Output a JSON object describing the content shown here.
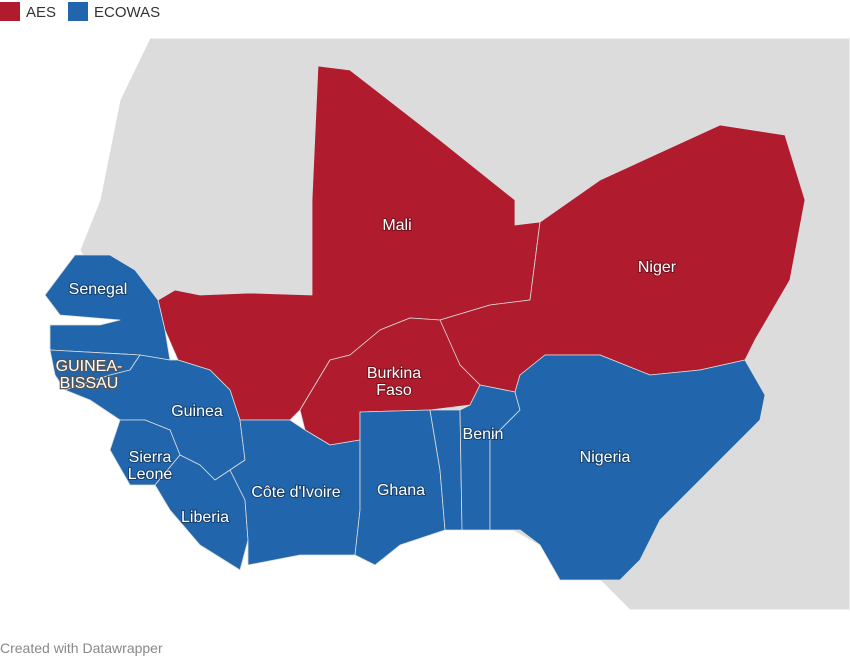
{
  "legend": [
    {
      "label": "AES",
      "color": "#b01c2e"
    },
    {
      "label": "ECOWAS",
      "color": "#2166ac"
    }
  ],
  "regions": [
    {
      "label": [
        "Mali"
      ],
      "group": "AES"
    },
    {
      "label": [
        "Niger"
      ],
      "group": "AES"
    },
    {
      "label": [
        "Burkina",
        "Faso"
      ],
      "group": "AES"
    },
    {
      "label": [
        "Senegal"
      ],
      "group": "ECOWAS"
    },
    {
      "label": [
        "GUINEA-",
        "BISSAU"
      ],
      "group": "ECOWAS"
    },
    {
      "label": [
        "Guinea"
      ],
      "group": "ECOWAS"
    },
    {
      "label": [
        "Sierra",
        "Leone"
      ],
      "group": "ECOWAS"
    },
    {
      "label": [
        "Liberia"
      ],
      "group": "ECOWAS"
    },
    {
      "label": [
        "Côte d'Ivoire"
      ],
      "group": "ECOWAS"
    },
    {
      "label": [
        "Ghana"
      ],
      "group": "ECOWAS"
    },
    {
      "label": [
        "Benin"
      ],
      "group": "ECOWAS"
    },
    {
      "label": [
        "Nigeria"
      ],
      "group": "ECOWAS"
    }
  ],
  "footer": "Created with Datawrapper"
}
